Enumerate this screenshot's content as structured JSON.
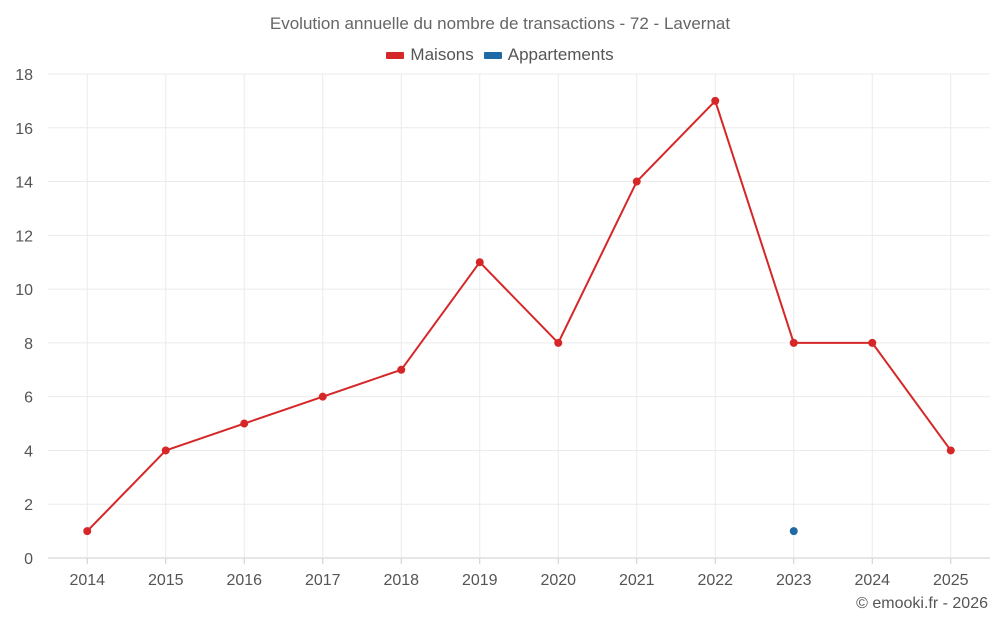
{
  "chart_data": {
    "type": "line",
    "title": "Evolution annuelle du nombre de transactions - 72 - Lavernat",
    "categories": [
      "2014",
      "2015",
      "2016",
      "2017",
      "2018",
      "2019",
      "2020",
      "2021",
      "2022",
      "2023",
      "2024",
      "2025"
    ],
    "series": [
      {
        "name": "Maisons",
        "color": "#d62728",
        "values": [
          1,
          4,
          5,
          6,
          7,
          11,
          8,
          14,
          17,
          8,
          8,
          4
        ]
      },
      {
        "name": "Appartements",
        "color": "#1f6aa5",
        "values": [
          null,
          null,
          null,
          null,
          null,
          null,
          null,
          null,
          null,
          1,
          null,
          null
        ]
      }
    ],
    "ylim": [
      0,
      18
    ],
    "yticks": [
      0,
      2,
      4,
      6,
      8,
      10,
      12,
      14,
      16,
      18
    ],
    "grid": true,
    "legend": "top-center",
    "xlabel": "",
    "ylabel": ""
  },
  "credit": "© emooki.fr - 2026"
}
